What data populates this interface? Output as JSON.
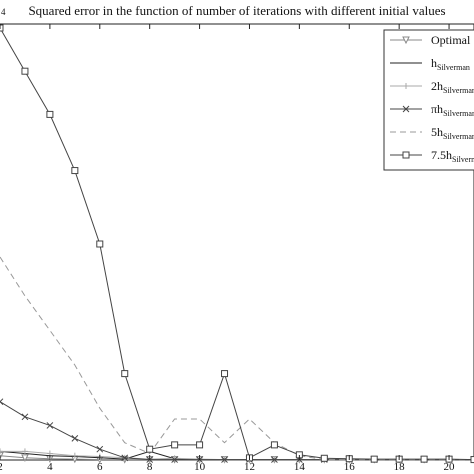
{
  "chart_data": {
    "type": "line",
    "title": "Squared error in the function of number of iterations with different initial values",
    "corner_label": "4",
    "xlabel": "",
    "ylabel": "",
    "xlim": [
      2,
      21
    ],
    "ylim": [
      0,
      1
    ],
    "grid": false,
    "legend_position": "top-right",
    "xticks": [
      2,
      4,
      6,
      8,
      10,
      12,
      14,
      16,
      18,
      20
    ],
    "x": [
      2,
      3,
      4,
      5,
      6,
      7,
      8,
      9,
      10,
      11,
      12,
      13,
      14,
      15,
      16,
      17,
      18,
      19,
      20,
      21
    ],
    "series": [
      {
        "name": "Optimal",
        "legend_main": "Optimal",
        "legend_sub": "",
        "color": "#888888",
        "dash": "",
        "marker": "triangle",
        "values": [
          0.01,
          0.005,
          0.003,
          0.002,
          0.001,
          0.001,
          0.001,
          0.001,
          0.001,
          0.001,
          0.001,
          0.001,
          0.001,
          0.001,
          0.001,
          0.001,
          0.001,
          0.001,
          0.001,
          0.001
        ]
      },
      {
        "name": "hSilverman",
        "legend_main": "h",
        "legend_sub": "Silverman",
        "color": "#222222",
        "dash": "",
        "marker": "none",
        "values": [
          0.02,
          0.015,
          0.01,
          0.008,
          0.005,
          0.002,
          0.02,
          0.003,
          0.001,
          0.001,
          0.001,
          0.001,
          0.001,
          0.001,
          0.001,
          0.001,
          0.001,
          0.001,
          0.001,
          0.001
        ]
      },
      {
        "name": "2hSilverman",
        "legend_main": "2h",
        "legend_sub": "Silverman",
        "color": "#aaaaaa",
        "dash": "",
        "marker": "plus",
        "values": [
          0.02,
          0.02,
          0.015,
          0.01,
          0.008,
          0.005,
          0.002,
          0.004,
          0.002,
          0.001,
          0.001,
          0.001,
          0.001,
          0.001,
          0.001,
          0.001,
          0.001,
          0.001,
          0.001,
          0.001
        ]
      },
      {
        "name": "πhSilverman",
        "legend_main": "πh",
        "legend_sub": "Silverman",
        "color": "#444444",
        "dash": "",
        "marker": "x",
        "values": [
          0.135,
          0.1,
          0.08,
          0.05,
          0.025,
          0.005,
          0.001,
          0.001,
          0.001,
          0.001,
          0.001,
          0.001,
          0.001,
          0.001,
          0.001,
          0.001,
          0.001,
          0.001,
          0.001,
          0.001
        ]
      },
      {
        "name": "5hSilverman",
        "legend_main": "5h",
        "legend_sub": "Silverman",
        "color": "#999999",
        "dash": "6,4",
        "marker": "none",
        "values": [
          0.47,
          0.38,
          0.3,
          0.22,
          0.12,
          0.04,
          0.015,
          0.095,
          0.095,
          0.04,
          0.095,
          0.04,
          0.01,
          0.001,
          0.001,
          0.001,
          0.001,
          0.001,
          0.001,
          0.001
        ]
      },
      {
        "name": "7.5hSilverman",
        "legend_main": "7.5h",
        "legend_sub": "Silverman",
        "color": "#444444",
        "dash": "",
        "marker": "square",
        "values": [
          1.0,
          0.9,
          0.8,
          0.67,
          0.5,
          0.2,
          0.025,
          0.035,
          0.035,
          0.2,
          0.005,
          0.035,
          0.012,
          0.004,
          0.003,
          0.002,
          0.002,
          0.002,
          0.002,
          0.001
        ]
      }
    ]
  }
}
